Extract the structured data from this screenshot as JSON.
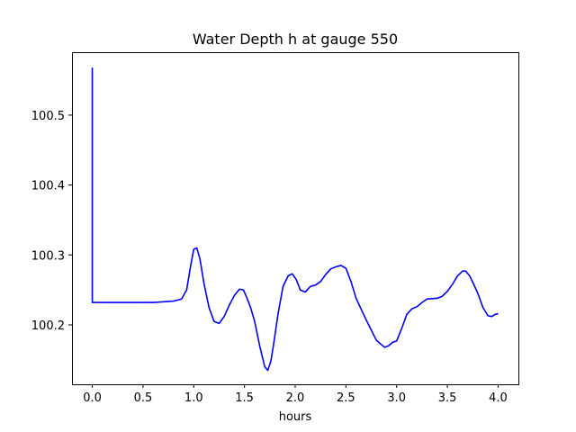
{
  "chart_data": {
    "type": "line",
    "title": "Water Depth h at gauge 550",
    "xlabel": "hours",
    "ylabel": "",
    "xlim": [
      -0.2,
      4.2
    ],
    "ylim": [
      100.115,
      100.59
    ],
    "xticks": [
      0.0,
      0.5,
      1.0,
      1.5,
      2.0,
      2.5,
      3.0,
      3.5,
      4.0
    ],
    "xtick_labels": [
      "0.0",
      "0.5",
      "1.0",
      "1.5",
      "2.0",
      "2.5",
      "3.0",
      "3.5",
      "4.0"
    ],
    "yticks": [
      100.2,
      100.3,
      100.4,
      100.5
    ],
    "ytick_labels": [
      "100.2",
      "100.3",
      "100.4",
      "100.5"
    ],
    "grid": false,
    "legend": "none",
    "series": [
      {
        "color": "#0000ff",
        "x": [
          0.0,
          0.0,
          0.01,
          0.3,
          0.6,
          0.8,
          0.88,
          0.93,
          0.97,
          1.0,
          1.03,
          1.06,
          1.1,
          1.15,
          1.2,
          1.25,
          1.3,
          1.35,
          1.4,
          1.45,
          1.49,
          1.52,
          1.56,
          1.6,
          1.65,
          1.7,
          1.73,
          1.76,
          1.79,
          1.83,
          1.88,
          1.93,
          1.97,
          2.01,
          2.05,
          2.1,
          2.15,
          2.2,
          2.25,
          2.3,
          2.35,
          2.4,
          2.45,
          2.5,
          2.55,
          2.6,
          2.7,
          2.8,
          2.88,
          2.92,
          2.96,
          3.0,
          3.05,
          3.1,
          3.15,
          3.2,
          3.25,
          3.3,
          3.4,
          3.45,
          3.5,
          3.55,
          3.6,
          3.65,
          3.68,
          3.72,
          3.76,
          3.8,
          3.85,
          3.9,
          3.94,
          3.97,
          4.0
        ],
        "y": [
          100.568,
          100.232,
          100.232,
          100.232,
          100.232,
          100.234,
          100.237,
          100.25,
          100.285,
          100.308,
          100.31,
          100.295,
          100.26,
          100.225,
          100.205,
          100.202,
          100.212,
          100.228,
          100.242,
          100.251,
          100.25,
          100.24,
          100.225,
          100.205,
          100.17,
          100.14,
          100.135,
          100.148,
          100.175,
          100.215,
          100.255,
          100.27,
          100.273,
          100.265,
          100.25,
          100.247,
          100.255,
          100.257,
          100.262,
          100.272,
          100.28,
          100.283,
          100.285,
          100.281,
          100.262,
          100.238,
          100.207,
          100.178,
          100.168,
          100.17,
          100.175,
          100.177,
          100.195,
          100.215,
          100.223,
          100.226,
          100.232,
          100.237,
          100.238,
          100.241,
          100.248,
          100.258,
          100.27,
          100.277,
          100.277,
          100.27,
          100.258,
          100.245,
          100.225,
          100.213,
          100.212,
          100.215,
          100.216
        ]
      }
    ]
  }
}
